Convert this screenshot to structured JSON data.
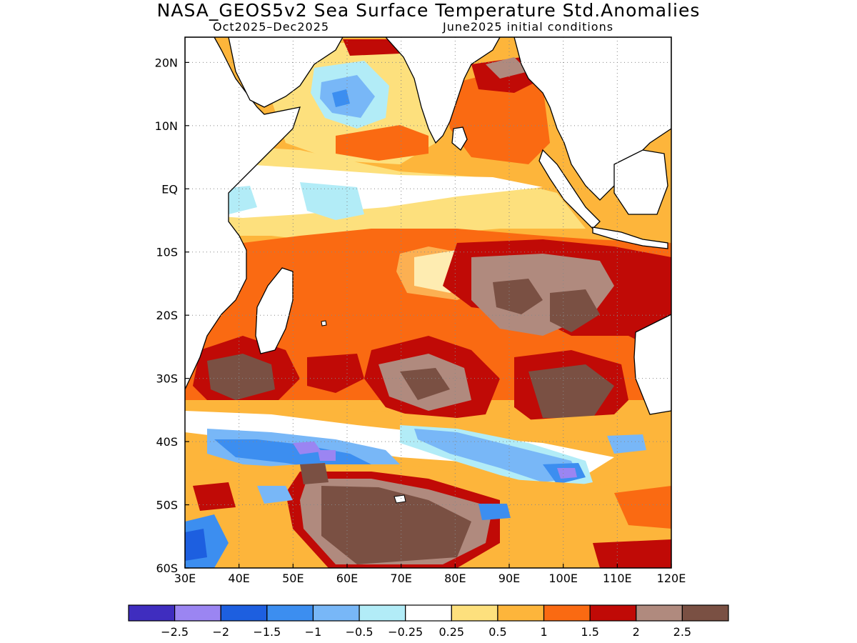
{
  "title": "NASA_GEOS5v2 Sea Surface Temperature Std.Anomalies",
  "subtitle_left": "Oct2025–Dec2025",
  "subtitle_right": "June2025 initial conditions",
  "map": {
    "lon_ticks": [
      "30E",
      "40E",
      "50E",
      "60E",
      "70E",
      "80E",
      "90E",
      "100E",
      "110E",
      "120E"
    ],
    "lat_ticks": [
      "20N",
      "10N",
      "EQ",
      "10S",
      "20S",
      "30S",
      "40S",
      "50S",
      "60S"
    ],
    "lon_range": [
      30,
      120
    ],
    "lat_range": [
      -60,
      24
    ],
    "grid": true
  },
  "colorbar": {
    "labels": [
      "−2.5",
      "−2",
      "−1.5",
      "−1",
      "−0.5",
      "−0.25",
      "0.25",
      "0.5",
      "1",
      "1.5",
      "2",
      "2.5"
    ],
    "colors": [
      "#3f2dbf",
      "#9b85f2",
      "#1d5fe0",
      "#3c8ef0",
      "#78b7f7",
      "#b2ecf7",
      "#ffffff",
      "#fde07d",
      "#fdb53b",
      "#fa6a12",
      "#c00a06",
      "#b08a7e",
      "#7a5043"
    ]
  }
}
